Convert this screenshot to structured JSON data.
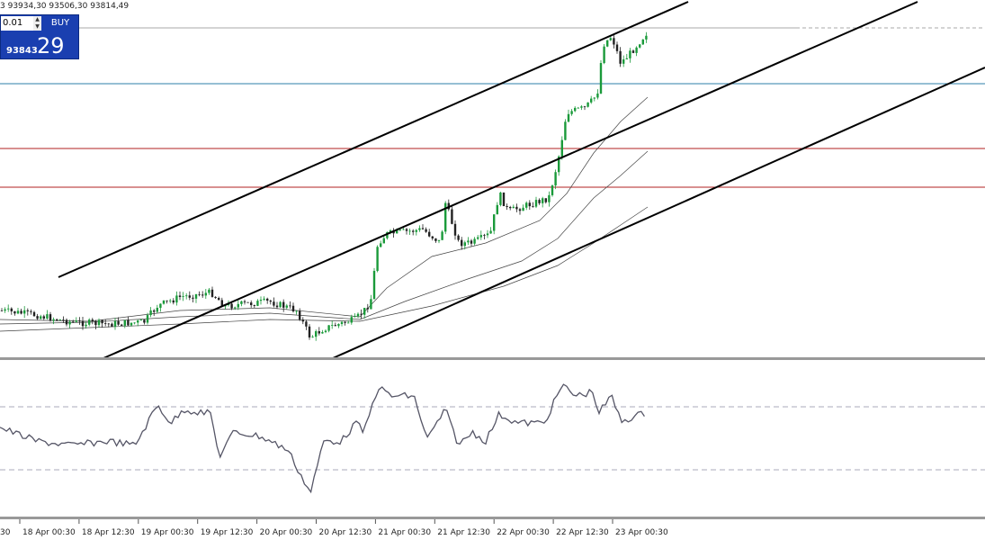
{
  "header": {
    "ohlc": "3 93934,30 93506,30 93814,49"
  },
  "trade_panel": {
    "lot": "0.01",
    "button": "BUY",
    "price_main": "93843",
    "price_big": "29"
  },
  "x_axis": {
    "labels": [
      "30",
      "18 Apr 00:30",
      "18 Apr 12:30",
      "19 Apr 00:30",
      "19 Apr 12:30",
      "20 Apr 00:30",
      "20 Apr 12:30",
      "21 Apr 00:30",
      "21 Apr 12:30",
      "22 Apr 00:30",
      "22 Apr 12:30",
      "23 Apr 00:30"
    ]
  }
}
